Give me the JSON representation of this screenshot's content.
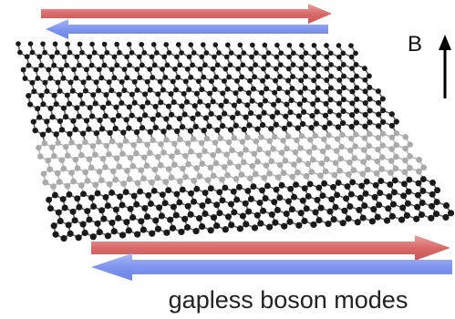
{
  "field_label": "B",
  "caption": "gapless boson modes"
}
